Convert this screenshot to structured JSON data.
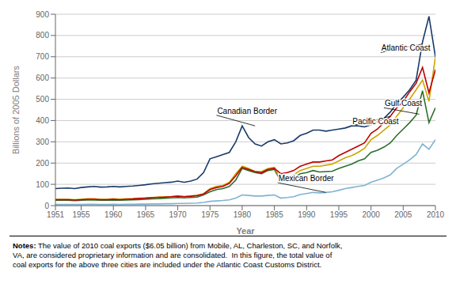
{
  "chart_data": {
    "type": "line",
    "xlabel": "Year",
    "ylabel": "Billions of 2005 Dollars",
    "x": [
      1951,
      1952,
      1953,
      1954,
      1955,
      1956,
      1957,
      1958,
      1959,
      1960,
      1961,
      1962,
      1963,
      1964,
      1965,
      1966,
      1967,
      1968,
      1969,
      1970,
      1971,
      1972,
      1973,
      1974,
      1975,
      1976,
      1977,
      1978,
      1979,
      1980,
      1981,
      1982,
      1983,
      1984,
      1985,
      1986,
      1987,
      1988,
      1989,
      1990,
      1991,
      1992,
      1993,
      1994,
      1995,
      1996,
      1997,
      1998,
      1999,
      2000,
      2001,
      2002,
      2003,
      2004,
      2005,
      2006,
      2007,
      2008,
      2009,
      2010
    ],
    "series": [
      {
        "name": "Mexican Border",
        "color": "#7fb3d3",
        "values": [
          5,
          5,
          5,
          5,
          5,
          6,
          6,
          5,
          5,
          6,
          5,
          6,
          6,
          7,
          7,
          8,
          8,
          9,
          9,
          10,
          10,
          11,
          12,
          15,
          20,
          22,
          24,
          27,
          35,
          50,
          48,
          45,
          45,
          48,
          50,
          35,
          38,
          42,
          52,
          57,
          62,
          60,
          62,
          65,
          72,
          80,
          85,
          90,
          95,
          110,
          120,
          130,
          145,
          175,
          195,
          215,
          240,
          290,
          265,
          310
        ]
      },
      {
        "name": "Gulf Coast",
        "color": "#2d6e2d",
        "values": [
          25,
          25,
          25,
          23,
          25,
          26,
          26,
          25,
          25,
          26,
          25,
          26,
          27,
          28,
          30,
          32,
          33,
          35,
          36,
          38,
          36,
          38,
          40,
          50,
          65,
          75,
          80,
          90,
          120,
          175,
          165,
          155,
          150,
          165,
          170,
          115,
          120,
          130,
          150,
          155,
          165,
          158,
          160,
          162,
          175,
          185,
          195,
          210,
          220,
          250,
          260,
          275,
          295,
          330,
          360,
          390,
          425,
          540,
          390,
          460
        ]
      },
      {
        "name": "Canadian Border",
        "color": "#c8a800",
        "values": [
          30,
          30,
          30,
          28,
          30,
          32,
          32,
          30,
          30,
          32,
          30,
          32,
          33,
          35,
          36,
          38,
          40,
          42,
          43,
          45,
          43,
          45,
          48,
          55,
          80,
          90,
          95,
          110,
          150,
          185,
          175,
          160,
          160,
          175,
          180,
          120,
          130,
          145,
          165,
          175,
          185,
          185,
          190,
          195,
          210,
          225,
          235,
          250,
          270,
          310,
          330,
          355,
          380,
          420,
          460,
          500,
          545,
          590,
          490,
          700
        ]
      },
      {
        "name": "Pacific Coast",
        "color": "#c00000",
        "values": [
          28,
          28,
          28,
          26,
          28,
          30,
          30,
          28,
          28,
          30,
          28,
          30,
          31,
          33,
          35,
          37,
          39,
          40,
          42,
          44,
          42,
          44,
          47,
          55,
          75,
          85,
          90,
          105,
          140,
          180,
          170,
          160,
          155,
          170,
          175,
          150,
          155,
          165,
          185,
          195,
          205,
          205,
          210,
          215,
          235,
          250,
          265,
          280,
          295,
          340,
          360,
          390,
          420,
          460,
          490,
          535,
          575,
          650,
          530,
          640
        ]
      },
      {
        "name": "Atlantic Coast",
        "color": "#1a3a6b",
        "values": [
          80,
          82,
          83,
          80,
          85,
          88,
          90,
          87,
          88,
          90,
          88,
          90,
          92,
          95,
          98,
          102,
          105,
          108,
          110,
          115,
          110,
          115,
          125,
          155,
          220,
          230,
          240,
          250,
          300,
          375,
          320,
          290,
          280,
          300,
          310,
          290,
          295,
          305,
          330,
          340,
          355,
          355,
          350,
          355,
          360,
          365,
          375,
          375,
          370,
          380,
          395,
          410,
          440,
          480,
          510,
          545,
          590,
          770,
          890,
          700
        ]
      }
    ],
    "xlim": [
      1951,
      2010
    ],
    "ylim": [
      0,
      900
    ],
    "xticks": [
      1951,
      1955,
      1960,
      1965,
      1970,
      1975,
      1980,
      1985,
      1990,
      1995,
      2000,
      2005,
      2010
    ],
    "yticks": [
      0,
      100,
      200,
      300,
      400,
      500,
      600,
      700,
      800,
      900
    ],
    "grid": true,
    "annotations": [
      {
        "text": "Atlantic Coast",
        "x": 2008,
        "y": 760,
        "text_x": 2001.5,
        "text_y": 720
      },
      {
        "text": "Canadian Border",
        "x": 1982,
        "y": 375,
        "text_x": 1976,
        "text_y": 425
      },
      {
        "text": "Gulf Coast",
        "x": 2007.5,
        "y": 430,
        "text_x": 2002,
        "text_y": 460
      },
      {
        "text": "Pacific Coast",
        "x": 2003,
        "y": 420,
        "text_x": 1997,
        "text_y": 375
      },
      {
        "text": "Mexican Border",
        "x": 1993,
        "y": 62,
        "text_x": 1985.5,
        "text_y": 108
      }
    ],
    "notes_title": "Notes:",
    "notes": "The value of 2010 coal exports ($6.05 billion) from Mobile, AL, Charleston, SC, and Norfolk,\nVA, are considered proprietary information and are consolidated.  In this figure, the total value of\ncoal exports for the above three cities are included under the Atlantic Coast Customs District."
  }
}
